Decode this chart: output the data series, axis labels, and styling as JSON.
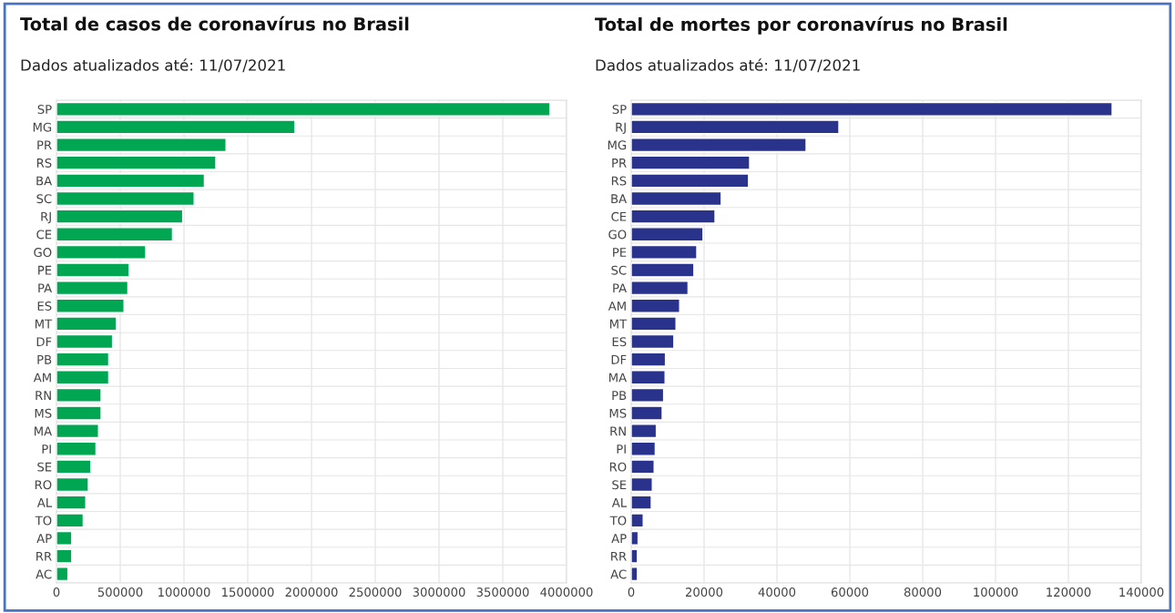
{
  "chart_data": [
    {
      "type": "bar",
      "orientation": "horizontal",
      "title": "Total de casos de coronavírus no Brasil",
      "subtitle": "Dados atualizados até: 11/07/2021",
      "categories": [
        "SP",
        "MG",
        "PR",
        "RS",
        "BA",
        "SC",
        "RJ",
        "CE",
        "GO",
        "PE",
        "PA",
        "ES",
        "MT",
        "DF",
        "PB",
        "AM",
        "RN",
        "MS",
        "MA",
        "PI",
        "SE",
        "RO",
        "AL",
        "TO",
        "AP",
        "RR",
        "AC"
      ],
      "values": [
        3870000,
        1870000,
        1330000,
        1250000,
        1160000,
        1080000,
        990000,
        910000,
        700000,
        570000,
        560000,
        530000,
        470000,
        440000,
        410000,
        410000,
        350000,
        350000,
        330000,
        310000,
        270000,
        250000,
        230000,
        210000,
        120000,
        120000,
        90000
      ],
      "color": "#00a651",
      "xlim": [
        0,
        4000000
      ],
      "xticks": [
        0,
        500000,
        1000000,
        1500000,
        2000000,
        2500000,
        3000000,
        3500000,
        4000000
      ],
      "grid": "x",
      "legend": false
    },
    {
      "type": "bar",
      "orientation": "horizontal",
      "title": "Total de mortes por coronavírus no Brasil",
      "subtitle": "Dados atualizados até: 11/07/2021",
      "categories": [
        "SP",
        "RJ",
        "MG",
        "PR",
        "RS",
        "BA",
        "CE",
        "GO",
        "PE",
        "SC",
        "PA",
        "AM",
        "MT",
        "ES",
        "DF",
        "MA",
        "PB",
        "MS",
        "RN",
        "PI",
        "RO",
        "SE",
        "AL",
        "TO",
        "AP",
        "RR",
        "AC"
      ],
      "values": [
        132000,
        57000,
        48000,
        32500,
        32200,
        24700,
        23000,
        19700,
        18000,
        17200,
        15600,
        13300,
        12300,
        11700,
        9400,
        9300,
        8900,
        8500,
        6900,
        6600,
        6300,
        5800,
        5500,
        3300,
        1900,
        1700,
        1700
      ],
      "color": "#29338c",
      "xlim": [
        0,
        140000
      ],
      "xticks": [
        0,
        20000,
        40000,
        60000,
        80000,
        100000,
        120000,
        140000
      ],
      "grid": "x",
      "legend": false
    }
  ]
}
